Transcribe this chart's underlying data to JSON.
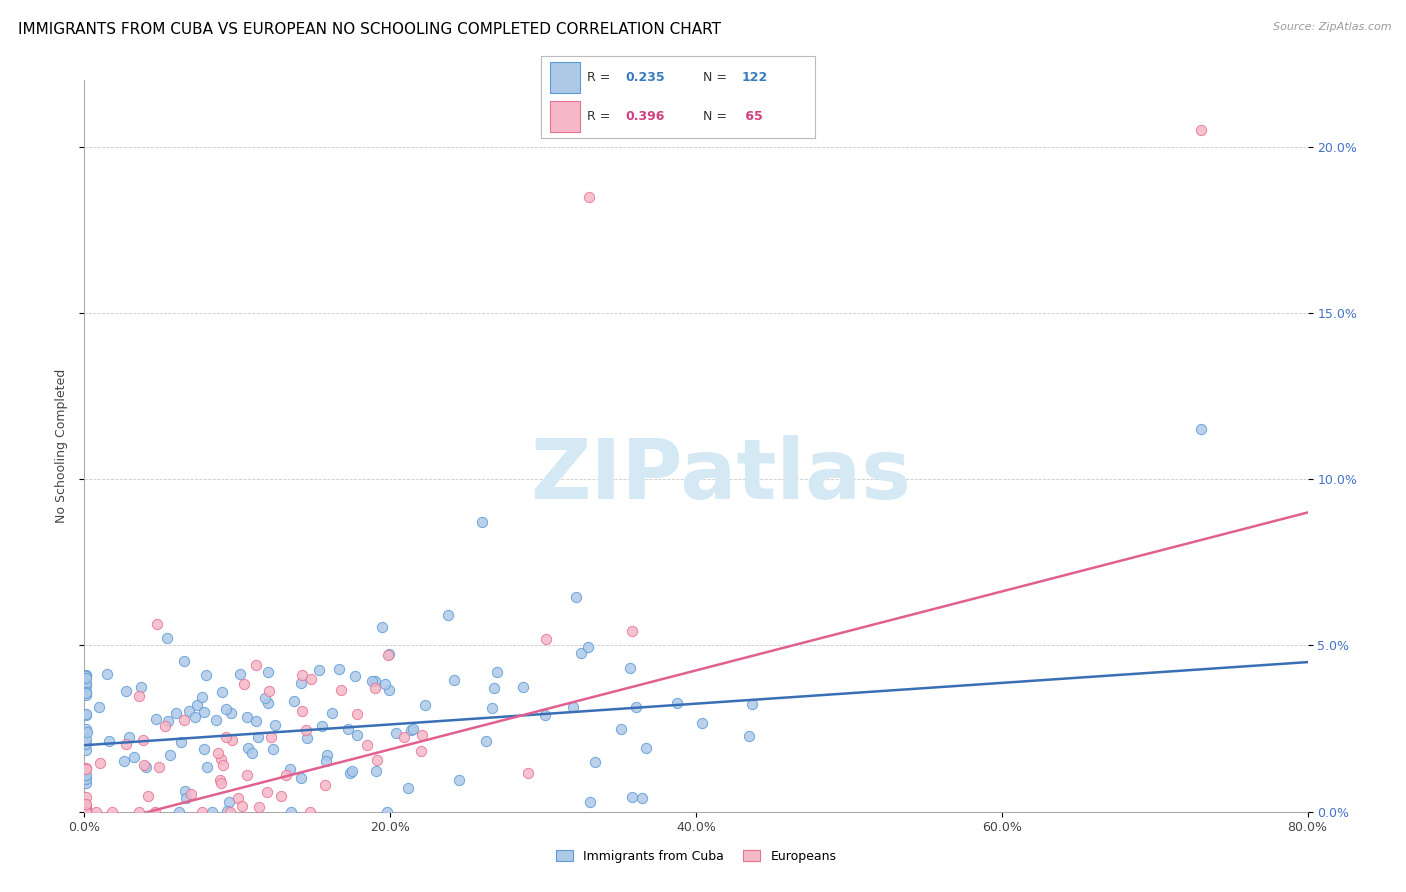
{
  "title": "IMMIGRANTS FROM CUBA VS EUROPEAN NO SCHOOLING COMPLETED CORRELATION CHART",
  "source": "Source: ZipAtlas.com",
  "ylabel": "No Schooling Completed",
  "legend_label1": "Immigrants from Cuba",
  "legend_label2": "Europeans",
  "r1": 0.235,
  "n1": 122,
  "r2": 0.396,
  "n2": 65,
  "color_blue_fill": "#aec8e8",
  "color_blue_edge": "#5b9bd5",
  "color_pink_fill": "#f4b8c8",
  "color_pink_edge": "#e87090",
  "color_blue_line": "#3a6fb5",
  "color_pink_line": "#e06090",
  "color_r1": "#3a7bbf",
  "color_r2": "#d04080",
  "xlim": [
    0.0,
    0.8
  ],
  "ylim": [
    0.0,
    0.22
  ],
  "x_ticks": [
    0.0,
    0.2,
    0.4,
    0.6,
    0.8
  ],
  "y_ticks": [
    0.0,
    0.05,
    0.1,
    0.15,
    0.2
  ],
  "title_fontsize": 11,
  "tick_fontsize": 9,
  "ylabel_fontsize": 9,
  "watermark": "ZIPatlas",
  "watermark_color": "#d5e9f5",
  "watermark_fontsize": 60,
  "legend_r1_text": "R = 0.235   N = 122",
  "legend_r2_text": "R = 0.396   N =  65"
}
